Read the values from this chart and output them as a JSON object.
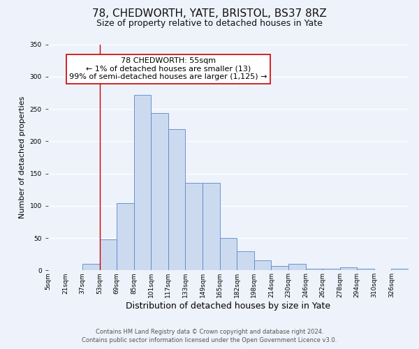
{
  "title": "78, CHEDWORTH, YATE, BRISTOL, BS37 8RZ",
  "subtitle": "Size of property relative to detached houses in Yate",
  "xlabel": "Distribution of detached houses by size in Yate",
  "ylabel": "Number of detached properties",
  "bin_labels": [
    "5sqm",
    "21sqm",
    "37sqm",
    "53sqm",
    "69sqm",
    "85sqm",
    "101sqm",
    "117sqm",
    "133sqm",
    "149sqm",
    "165sqm",
    "182sqm",
    "198sqm",
    "214sqm",
    "230sqm",
    "246sqm",
    "262sqm",
    "278sqm",
    "294sqm",
    "310sqm",
    "326sqm"
  ],
  "bar_heights": [
    0,
    0,
    10,
    48,
    104,
    272,
    244,
    219,
    135,
    135,
    50,
    30,
    15,
    7,
    10,
    3,
    2,
    5,
    2,
    0,
    3
  ],
  "bar_color": "#ccdaf0",
  "bar_edge_color": "#5588cc",
  "background_color": "#eef2fa",
  "grid_color": "#ffffff",
  "ylim": [
    0,
    350
  ],
  "yticks": [
    0,
    50,
    100,
    150,
    200,
    250,
    300,
    350
  ],
  "vline_index": 3,
  "vline_color": "#cc0000",
  "annotation_title": "78 CHEDWORTH: 55sqm",
  "annotation_line1": "← 1% of detached houses are smaller (13)",
  "annotation_line2": "99% of semi-detached houses are larger (1,125) →",
  "annotation_box_color": "#cc0000",
  "footer_line1": "Contains HM Land Registry data © Crown copyright and database right 2024.",
  "footer_line2": "Contains public sector information licensed under the Open Government Licence v3.0.",
  "title_fontsize": 11,
  "subtitle_fontsize": 9,
  "xlabel_fontsize": 9,
  "ylabel_fontsize": 8,
  "tick_fontsize": 6.5,
  "annotation_fontsize": 8,
  "footer_fontsize": 6
}
